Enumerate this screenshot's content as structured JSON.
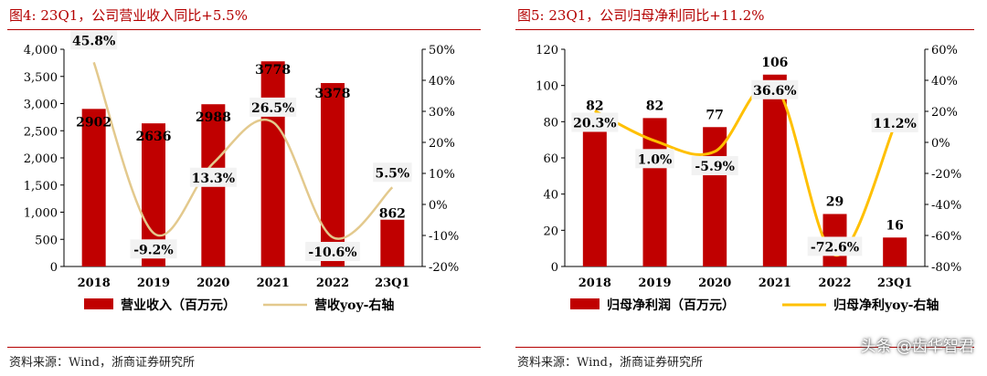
{
  "watermark": "头条 @齿华智君",
  "colors": {
    "bar_red": "#c00000",
    "line_tan": "#e3c98d",
    "line_yellow": "#ffc000",
    "title_red": "#b40000"
  },
  "panels": [
    {
      "title": "图4:  23Q1，公司营业收入同比+5.5%",
      "source": "资料来源：Wind，浙商证券研究所",
      "legend": {
        "bar": "营业收入（百万元）",
        "line": "营收yoy-右轴"
      },
      "chart_data": {
        "type": "bar",
        "categories": [
          "2018",
          "2019",
          "2020",
          "2021",
          "2022",
          "23Q1"
        ],
        "series": [
          {
            "name": "营业收入（百万元）",
            "type": "bar",
            "axis": "left",
            "values": [
              2902,
              2636,
              2988,
              3778,
              3378,
              862
            ],
            "labels": [
              "2902",
              "2636",
              "2988",
              "3778",
              "3378",
              "862"
            ]
          },
          {
            "name": "营收yoy-右轴",
            "type": "line",
            "axis": "right",
            "values": [
              45.8,
              -9.2,
              13.3,
              26.5,
              -10.6,
              5.5
            ],
            "labels": [
              "45.8%",
              "-9.2%",
              "13.3%",
              "26.5%",
              "-10.6%",
              "5.5%"
            ]
          }
        ],
        "ylim_left": [
          0,
          4000
        ],
        "yticks_left": [
          "0",
          "500",
          "1,000",
          "1,500",
          "2,000",
          "2,500",
          "3,000",
          "3,500",
          "4,000"
        ],
        "ylim_right": [
          -20,
          50
        ],
        "yticks_right": [
          "-20%",
          "-10%",
          "0%",
          "10%",
          "20%",
          "30%",
          "40%",
          "50%"
        ],
        "legend_position": "bottom",
        "grid": false
      }
    },
    {
      "title": "图5:  23Q1，公司归母净利同比+11.2%",
      "source": "资料来源：Wind，浙商证券研究所",
      "legend": {
        "bar": "归母净利润（百万元）",
        "line": "归母净利yoy-右轴"
      },
      "chart_data": {
        "type": "bar",
        "categories": [
          "2018",
          "2019",
          "2020",
          "2021",
          "2022",
          "23Q1"
        ],
        "series": [
          {
            "name": "归母净利润（百万元）",
            "type": "bar",
            "axis": "left",
            "values": [
              82,
              82,
              77,
              106,
              29,
              16
            ],
            "labels": [
              "82",
              "82",
              "77",
              "106",
              "29",
              "16"
            ]
          },
          {
            "name": "归母净利yoy-右轴",
            "type": "line",
            "axis": "right",
            "values": [
              20.3,
              1.0,
              -5.9,
              36.6,
              -72.6,
              11.2
            ],
            "labels": [
              "20.3%",
              "1.0%",
              "-5.9%",
              "36.6%",
              "-72.6%",
              "11.2%"
            ]
          }
        ],
        "ylim_left": [
          0,
          120
        ],
        "yticks_left": [
          "0",
          "20",
          "40",
          "60",
          "80",
          "100",
          "120"
        ],
        "ylim_right": [
          -80,
          60
        ],
        "yticks_right": [
          "-80%",
          "-60%",
          "-40%",
          "-20%",
          "0%",
          "20%",
          "40%",
          "60%"
        ],
        "legend_position": "bottom",
        "grid": false
      }
    }
  ]
}
